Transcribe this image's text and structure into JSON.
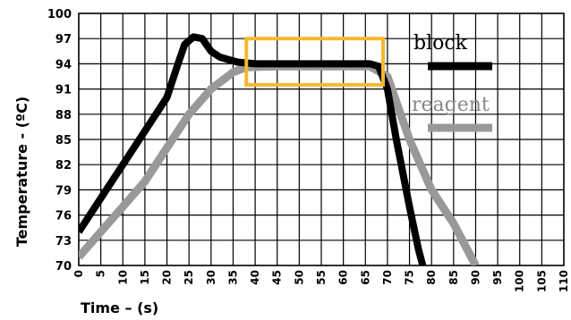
{
  "chart_data": {
    "type": "line",
    "xlabel": "Time – (s)",
    "ylabel": "Temperature - (ºC)",
    "xlim": [
      0,
      110
    ],
    "ylim": [
      70,
      100
    ],
    "x_ticks": [
      "0",
      "5",
      "10",
      "15",
      "20",
      "25",
      "30",
      "35",
      "40",
      "45",
      "50",
      "55",
      "60",
      "65",
      "70",
      "75",
      "80",
      "85",
      "90",
      "95",
      "100",
      "105",
      "110"
    ],
    "y_ticks": [
      "70",
      "73",
      "76",
      "79",
      "82",
      "85",
      "88",
      "91",
      "94",
      "97",
      "100"
    ],
    "grid": true,
    "legend_position": "top-right",
    "series": [
      {
        "name": "block",
        "color": "#000000",
        "points": [
          [
            0,
            74
          ],
          [
            5,
            78
          ],
          [
            10,
            82
          ],
          [
            15,
            86
          ],
          [
            20,
            90
          ],
          [
            22.5,
            94
          ],
          [
            24,
            96.3
          ],
          [
            26,
            97.2
          ],
          [
            28,
            97
          ],
          [
            30,
            95.5
          ],
          [
            32,
            94.8
          ],
          [
            36,
            94.2
          ],
          [
            40,
            94
          ],
          [
            50,
            94
          ],
          [
            60,
            94
          ],
          [
            66,
            94
          ],
          [
            68,
            93.7
          ],
          [
            70,
            91
          ],
          [
            72,
            85
          ],
          [
            75,
            77
          ],
          [
            77,
            72
          ],
          [
            78,
            70
          ]
        ]
      },
      {
        "name": "reagent",
        "color": "#999999",
        "points": [
          [
            0,
            71
          ],
          [
            5,
            74
          ],
          [
            10,
            77
          ],
          [
            15,
            80
          ],
          [
            20,
            84
          ],
          [
            25,
            88
          ],
          [
            30,
            91
          ],
          [
            35,
            93
          ],
          [
            38,
            93.6
          ],
          [
            45,
            93.7
          ],
          [
            55,
            93.7
          ],
          [
            66,
            93.7
          ],
          [
            70,
            92.5
          ],
          [
            75,
            85
          ],
          [
            80,
            79
          ],
          [
            85,
            75
          ],
          [
            89,
            71
          ],
          [
            90,
            70
          ]
        ]
      }
    ],
    "highlight_box": {
      "x": [
        38,
        69
      ],
      "y": [
        91.5,
        97
      ],
      "color": "#f5b82e"
    }
  }
}
